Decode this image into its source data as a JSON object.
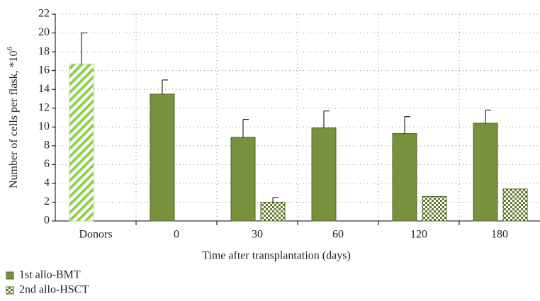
{
  "chart_data": {
    "type": "bar",
    "y_label": "Number of cells per flask, *10",
    "y_label_exponent": "6",
    "x_label": "Time after transplantation (days)",
    "categories": [
      "Donors",
      "0",
      "30",
      "60",
      "120",
      "180"
    ],
    "series": [
      {
        "name": "1st allo-BMT",
        "color": "#76923c",
        "pattern": "solid",
        "slot": 0,
        "values": [
          null,
          13.5,
          8.9,
          9.9,
          9.3,
          10.4
        ],
        "errors": [
          null,
          1.5,
          1.9,
          1.8,
          1.8,
          1.4
        ]
      },
      {
        "name": "2nd allo-HSCT",
        "color": "#76923c",
        "pattern": "checker",
        "slot": 1,
        "values": [
          null,
          null,
          2.0,
          null,
          2.6,
          3.4
        ],
        "errors": [
          null,
          null,
          0.5,
          null,
          null,
          null
        ]
      },
      {
        "color": "#92d050",
        "pattern": "hatch",
        "slot": 0,
        "values": [
          16.7,
          null,
          null,
          null,
          null,
          null
        ],
        "errors": [
          3.3,
          null,
          null,
          null,
          null,
          null
        ]
      }
    ],
    "ylim": [
      0,
      22
    ],
    "yticks": [
      0,
      2,
      4,
      6,
      8,
      10,
      12,
      14,
      16,
      18,
      20,
      22
    ],
    "grid": true
  }
}
